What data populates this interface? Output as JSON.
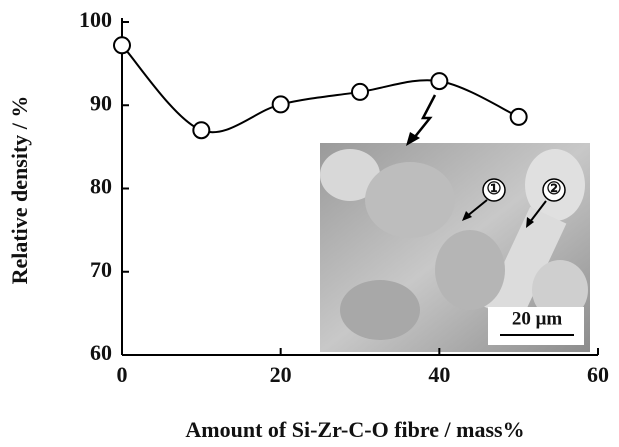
{
  "chart_data": {
    "type": "line",
    "x_label": "Amount of Si-Zr-C-O fibre / mass%",
    "y_label": "Relative density / %",
    "x": [
      0,
      10,
      20,
      30,
      40,
      50
    ],
    "series": [
      {
        "values": [
          97.2,
          87.0,
          90.1,
          91.6,
          92.9,
          88.6
        ],
        "color": "#000000"
      }
    ],
    "xlim": [
      0,
      60
    ],
    "ylim": [
      60,
      100
    ],
    "xticks": [
      0,
      20,
      40,
      60
    ],
    "yticks": [
      60,
      70,
      80,
      90,
      100
    ],
    "grid": false
  },
  "inset": {
    "labels": [
      "①",
      "②"
    ],
    "scale_bar": "20 μm"
  }
}
